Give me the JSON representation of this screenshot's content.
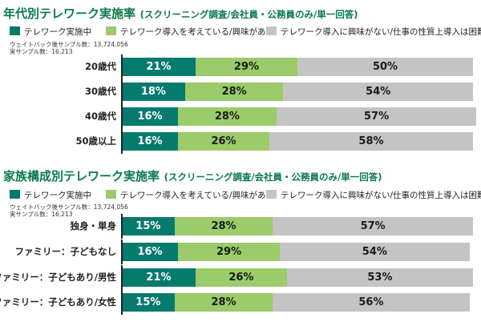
{
  "chart_data": [
    {
      "type": "bar",
      "stacked": true,
      "orientation": "horizontal",
      "title": "年代別テレワーク実施率",
      "subtitle": "(スクリーニング調査/会社員・公務員のみ/単一回答)",
      "sample_lines": [
        "ウェイトバック後サンプル数：13,724,056",
        "実サンプル数：16,213"
      ],
      "categories": [
        "20歳代",
        "30歳代",
        "40歳代",
        "50歳以上"
      ],
      "series": [
        {
          "name": "テレワーク実施中",
          "color": "#077a6e",
          "values": [
            21,
            18,
            16,
            16
          ]
        },
        {
          "name": "テレワーク導入を考えている/興味がある",
          "color": "#9bcb6a",
          "values": [
            29,
            28,
            28,
            26
          ]
        },
        {
          "name": "テレワーク導入に興味がない/仕事の性質上導入は困難",
          "color": "#c4c4c4",
          "values": [
            50,
            54,
            57,
            58
          ]
        }
      ],
      "value_suffix": "%",
      "xlim": [
        0,
        100
      ]
    },
    {
      "type": "bar",
      "stacked": true,
      "orientation": "horizontal",
      "title": "家族構成別テレワーク実施率",
      "subtitle": "(スクリーニング調査/会社員・公務員のみ/単一回答)",
      "sample_lines": [
        "ウェイトバック後サンプル数：13,724,056",
        "実サンプル数：16,213"
      ],
      "categories": [
        "独身・単身",
        "ファミリー：子どもなし",
        "ファミリー：子どもあり/男性",
        "ファミリー：子どもあり/女性"
      ],
      "series": [
        {
          "name": "テレワーク実施中",
          "color": "#077a6e",
          "values": [
            15,
            16,
            21,
            15
          ]
        },
        {
          "name": "テレワーク導入を考えている/興味がある",
          "color": "#9bcb6a",
          "values": [
            28,
            29,
            26,
            28
          ]
        },
        {
          "name": "テレワーク導入に興味がない/仕事の性質上導入は困難",
          "color": "#c4c4c4",
          "values": [
            57,
            54,
            53,
            56
          ]
        }
      ],
      "value_suffix": "%",
      "xlim": [
        0,
        100
      ]
    }
  ]
}
